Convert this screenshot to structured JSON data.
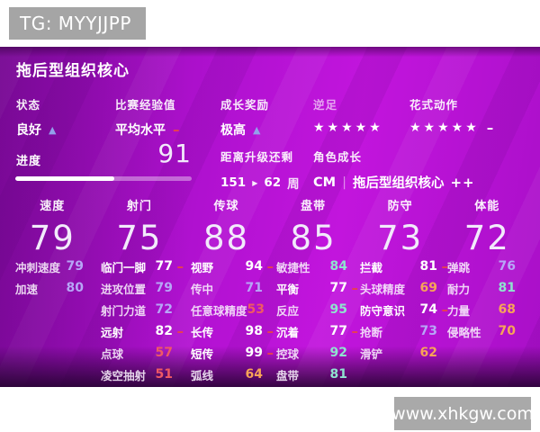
{
  "watermarks": {
    "tg": "TG: MYYJJPP",
    "site": "www.xhkgw.com"
  },
  "title": "拖后型组织核心",
  "overview": {
    "items": [
      {
        "label": "状态",
        "value": "良好",
        "indicator": "up",
        "kind": "text"
      },
      {
        "label": "比赛经验值",
        "value": "平均水平",
        "indicator": "down",
        "kind": "text"
      },
      {
        "label": "成长奖励",
        "value": "极高",
        "indicator": "up",
        "kind": "text"
      },
      {
        "label": "逆足",
        "value": "★★★★★",
        "indicator": "none",
        "kind": "stars",
        "dim": true
      },
      {
        "label": "花式动作",
        "value": "★★★★★",
        "indicator": "neutral",
        "kind": "stars"
      }
    ]
  },
  "progress": {
    "label": "进度",
    "value": "91",
    "percent": 56
  },
  "upgrade": {
    "label": "距离升级还剩",
    "current": "151",
    "arrow": "▶",
    "target": "62",
    "unit": "周"
  },
  "role": {
    "label": "角色成长",
    "position": "CM",
    "divider": "|",
    "name": "拖后型组织核心",
    "boost": "++"
  },
  "attributes": [
    {
      "label": "速度",
      "value": "79"
    },
    {
      "label": "射门",
      "value": "75"
    },
    {
      "label": "传球",
      "value": "88"
    },
    {
      "label": "盘带",
      "value": "85"
    },
    {
      "label": "防守",
      "value": "73"
    },
    {
      "label": "体能",
      "value": "72"
    }
  ],
  "detail_columns": [
    {
      "group": "速度",
      "stats": [
        {
          "label": "冲刺速度",
          "value": "79",
          "tone": "lavender"
        },
        {
          "label": "加速",
          "value": "80",
          "tone": "lavender"
        }
      ]
    },
    {
      "group": "射门",
      "stats": [
        {
          "label": "临门一脚",
          "value": "77",
          "tone": "boosted",
          "modifier": "–"
        },
        {
          "label": "进攻位置",
          "value": "79",
          "tone": "lavender"
        },
        {
          "label": "射门力道",
          "value": "72",
          "tone": "lavender"
        },
        {
          "label": "远射",
          "value": "82",
          "tone": "boosted",
          "modifier": "–"
        },
        {
          "label": "点球",
          "value": "57",
          "tone": "red"
        },
        {
          "label": "凌空抽射",
          "value": "51",
          "tone": "red"
        }
      ]
    },
    {
      "group": "传球",
      "stats": [
        {
          "label": "视野",
          "value": "94",
          "tone": "boosted",
          "modifier": "–"
        },
        {
          "label": "传中",
          "value": "71",
          "tone": "lavender"
        },
        {
          "label": "任意球精度",
          "value": "53",
          "tone": "red"
        },
        {
          "label": "长传",
          "value": "98",
          "tone": "boosted",
          "modifier": "–"
        },
        {
          "label": "短传",
          "value": "99",
          "tone": "boosted",
          "modifier": "–"
        },
        {
          "label": "弧线",
          "value": "64",
          "tone": "orange"
        }
      ]
    },
    {
      "group": "盘带",
      "stats": [
        {
          "label": "敏捷性",
          "value": "84",
          "tone": "teal"
        },
        {
          "label": "平衡",
          "value": "77",
          "tone": "boosted",
          "modifier": "–"
        },
        {
          "label": "反应",
          "value": "95",
          "tone": "teal"
        },
        {
          "label": "沉着",
          "value": "77",
          "tone": "boosted",
          "modifier": "–"
        },
        {
          "label": "控球",
          "value": "92",
          "tone": "teal"
        },
        {
          "label": "盘带",
          "value": "81",
          "tone": "teal"
        }
      ]
    },
    {
      "group": "防守",
      "stats": [
        {
          "label": "拦截",
          "value": "81",
          "tone": "boosted",
          "modifier": "–"
        },
        {
          "label": "头球精度",
          "value": "69",
          "tone": "orange"
        },
        {
          "label": "防守意识",
          "value": "74",
          "tone": "boosted",
          "modifier": "–"
        },
        {
          "label": "抢断",
          "value": "73",
          "tone": "lavender"
        },
        {
          "label": "滑铲",
          "value": "62",
          "tone": "orange"
        }
      ]
    },
    {
      "group": "体能",
      "stats": [
        {
          "label": "弹跳",
          "value": "76",
          "tone": "lavender"
        },
        {
          "label": "耐力",
          "value": "81",
          "tone": "teal"
        },
        {
          "label": "力量",
          "value": "68",
          "tone": "orange"
        },
        {
          "label": "侵略性",
          "value": "70",
          "tone": "orange"
        }
      ]
    }
  ],
  "colors": {
    "lav": "#b7a6f7",
    "teal": "#8fe3cf",
    "org": "#f7a457",
    "red": "#ef5964",
    "boost": "#ffffff",
    "minus": "#e8404f",
    "indUp": "#93a0ea",
    "indDown": "#e8404f",
    "panel": "#b011d0"
  }
}
